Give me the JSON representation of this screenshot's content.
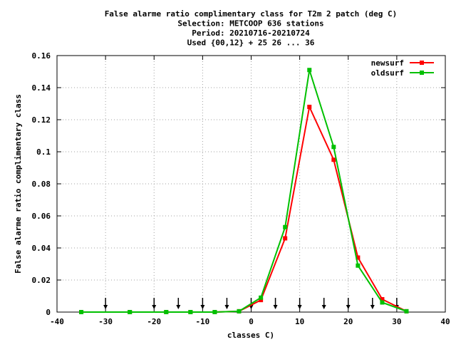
{
  "chart_data": {
    "type": "line",
    "title_lines": [
      "False alarme ratio complimentary class  for T2m 2 patch (deg C)",
      "Selection: METCOOP    636 stations",
      "Period: 20210716-20210724",
      "Used {00,12} + 25 26 ... 36"
    ],
    "xlabel": "classes C)",
    "ylabel": "False alarme ratio complimentary class",
    "xlim": [
      -40,
      40
    ],
    "ylim": [
      0,
      0.16
    ],
    "xticks": [
      -40,
      -30,
      -20,
      -10,
      0,
      10,
      20,
      30,
      40
    ],
    "xtick_labels": [
      "-40",
      "-30",
      "-20",
      "-10",
      "0",
      "10",
      "20",
      "30",
      "40"
    ],
    "yticks": [
      0,
      0.02,
      0.04,
      0.06,
      0.08,
      0.1,
      0.12,
      0.14,
      0.16
    ],
    "ytick_labels": [
      "0",
      "0.02",
      "0.04",
      "0.06",
      "0.08",
      "0.1",
      "0.12",
      "0.14",
      "0.16"
    ],
    "grid": true,
    "legend_position": "top-right",
    "series": [
      {
        "name": "newsurf",
        "color": "#ff0000",
        "x": [
          -35,
          -25,
          -17.5,
          -12.5,
          -7.5,
          -2.5,
          2,
          7,
          12,
          17,
          22,
          27,
          32
        ],
        "y": [
          0,
          0,
          0,
          0,
          0,
          0.0005,
          0.0075,
          0.046,
          0.128,
          0.095,
          0.034,
          0.008,
          0.0005
        ]
      },
      {
        "name": "oldsurf",
        "color": "#00c000",
        "x": [
          -35,
          -25,
          -17.5,
          -12.5,
          -7.5,
          -2.5,
          2,
          7,
          12,
          17,
          22,
          27,
          32
        ],
        "y": [
          0,
          0,
          0,
          0,
          0,
          0.0005,
          0.009,
          0.053,
          0.151,
          0.103,
          0.029,
          0.006,
          0.0005
        ]
      }
    ],
    "arrow_markers_x": [
      -30,
      -20,
      -15,
      -10,
      -5,
      0,
      5,
      10,
      15,
      20,
      25,
      30
    ]
  }
}
